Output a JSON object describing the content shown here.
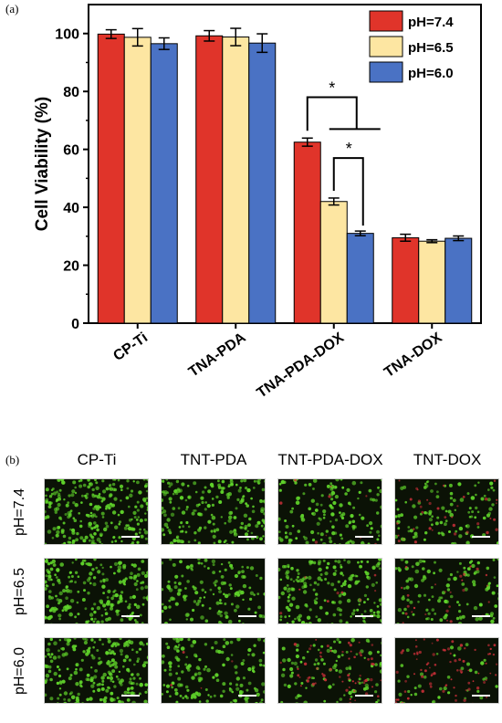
{
  "panel_a_label": "(a)",
  "panel_b_label": "(b)",
  "chart_data": {
    "type": "bar",
    "categories": [
      "CP-Ti",
      "TNA-PDA",
      "TNA-PDA-DOX",
      "TNA-DOX"
    ],
    "ylabel": "Cell Viability (%)",
    "xlabel": "",
    "ylim": [
      0,
      110
    ],
    "yticks": [
      0,
      20,
      40,
      60,
      80,
      100
    ],
    "legend_position": "top-right",
    "series": [
      {
        "name": "pH=7.4",
        "color": "#e0342a",
        "values": [
          99.8,
          99.2,
          62.5,
          29.5
        ],
        "errors": [
          1.5,
          1.8,
          1.4,
          1.2
        ]
      },
      {
        "name": "pH=6.5",
        "color": "#fde6a2",
        "values": [
          98.7,
          98.8,
          42.0,
          28.3
        ],
        "errors": [
          3.0,
          3.0,
          1.2,
          0.5
        ]
      },
      {
        "name": "pH=6.0",
        "color": "#4a72c4",
        "values": [
          96.5,
          96.7,
          31.0,
          29.3
        ],
        "errors": [
          2.0,
          3.2,
          0.8,
          0.8
        ]
      }
    ],
    "annotations": [
      {
        "text": "*",
        "category": "TNA-PDA-DOX",
        "from_series": 0,
        "to_series": [
          1,
          2
        ]
      },
      {
        "text": "*",
        "category": "TNA-PDA-DOX",
        "from_series": 1,
        "to_series": [
          2
        ]
      }
    ]
  },
  "micrographs": {
    "columns": [
      "CP-Ti",
      "TNT-PDA",
      "TNT-PDA-DOX",
      "TNT-DOX"
    ],
    "rows": [
      "pH=7.4",
      "pH=6.5",
      "pH=6.0"
    ],
    "colors": {
      "live": "#5fd22a",
      "dead": "#d0303a",
      "background": "#0b1206"
    },
    "cells": [
      [
        {
          "live": 0.95,
          "dead": 0.0
        },
        {
          "live": 0.75,
          "dead": 0.0
        },
        {
          "live": 0.55,
          "dead": 0.05
        },
        {
          "live": 0.4,
          "dead": 0.2
        }
      ],
      [
        {
          "live": 0.85,
          "dead": 0.0
        },
        {
          "live": 0.55,
          "dead": 0.0
        },
        {
          "live": 0.7,
          "dead": 0.05
        },
        {
          "live": 0.45,
          "dead": 0.15
        }
      ],
      [
        {
          "live": 0.9,
          "dead": 0.0
        },
        {
          "live": 0.6,
          "dead": 0.02
        },
        {
          "live": 0.4,
          "dead": 0.35
        },
        {
          "live": 0.15,
          "dead": 0.45
        }
      ]
    ]
  }
}
